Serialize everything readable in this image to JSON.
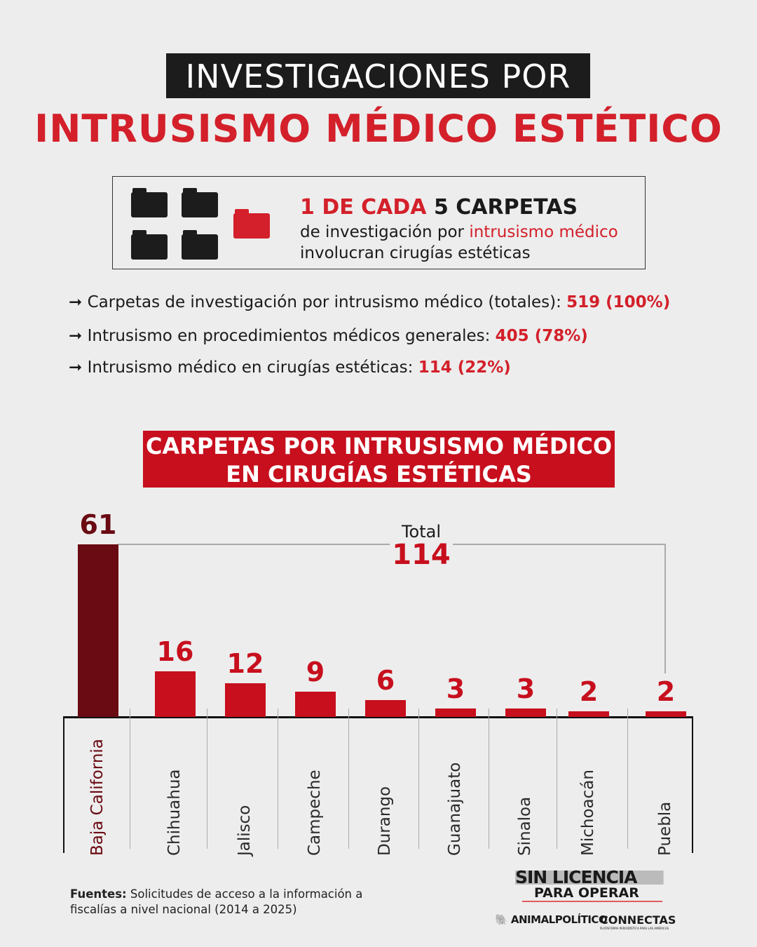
{
  "header": {
    "line1": "INVESTIGACIONES POR",
    "line2": "INTRUSISMO MÉDICO ESTÉTICO"
  },
  "callout": {
    "highlight_red": "1 DE CADA",
    "highlight_black": "5 CARPETAS",
    "line2_pre": "de investigación por ",
    "line2_red": "intrusismo médico",
    "line3": "involucran cirugías estéticas",
    "icons": [
      "folder-icon",
      "folder-icon",
      "folder-icon",
      "folder-icon",
      "folder-icon-red"
    ]
  },
  "stats": [
    {
      "label": "Carpetas de investigación por intrusismo médico (totales): ",
      "value": "519 (100%)"
    },
    {
      "label": "Intrusismo en procedimientos médicos generales: ",
      "value": "405 (78%)"
    },
    {
      "label": "Intrusismo médico en cirugías estéticas: ",
      "value": "114 (22%)"
    }
  ],
  "colors": {
    "accent": "#c70f1d",
    "highlight_bar": "#6a0a12",
    "title_red": "#d3202a"
  },
  "chart_data": {
    "type": "bar",
    "title": "CARPETAS POR INTRUSISMO MÉDICO EN CIRUGÍAS ESTÉTICAS",
    "categories": [
      "Baja California",
      "Chihuahua",
      "Jalisco",
      "Campeche",
      "Durango",
      "Guanajuato",
      "Sinaloa",
      "Michoacán",
      "Puebla"
    ],
    "values": [
      61,
      16,
      12,
      9,
      6,
      3,
      3,
      2,
      2
    ],
    "total_label": "Total",
    "total_value": "114",
    "ylim": [
      0,
      61
    ],
    "grid": false,
    "legend": "none"
  },
  "footer": {
    "sources_label": "Fuentes:",
    "sources_text": " Solicitudes de acceso a la información a fiscalías a nivel nacional (2014 a 2025)"
  },
  "logos": {
    "campaign": "SIN LICENCIA PARA OPERAR",
    "partner1": "ANIMALPOLÍTICO",
    "partner2": "CONNECTAS",
    "partner2_tagline": "PLATAFORMA PERIODÍSTICA PARA LAS AMÉRICAS"
  }
}
